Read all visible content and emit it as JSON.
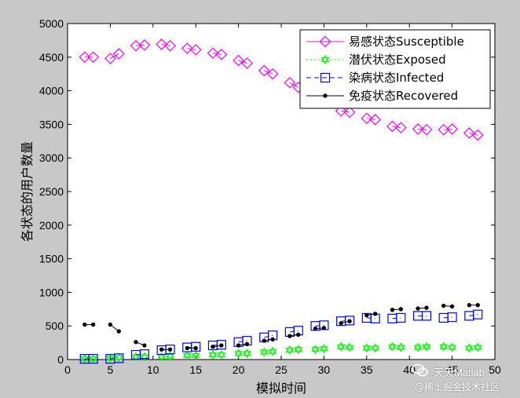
{
  "chart_data": {
    "type": "line",
    "title": "",
    "xlabel": "模拟时间",
    "ylabel": "各状态的用户数量",
    "xlim": [
      0,
      50
    ],
    "ylim": [
      0,
      5000
    ],
    "xticks": [
      0,
      5,
      10,
      15,
      20,
      25,
      30,
      35,
      40,
      45,
      50
    ],
    "yticks": [
      0,
      500,
      1000,
      1500,
      2000,
      2500,
      3000,
      3500,
      4000,
      4500,
      5000
    ],
    "grid": false,
    "legend_position": "top-right",
    "series": [
      {
        "name": "易感状态Susceptible",
        "color": "#ff00ff",
        "marker": "diamond",
        "line_style": "solid",
        "segments": [
          [
            [
              2,
              4500
            ],
            [
              3,
              4500
            ]
          ],
          [
            [
              5,
              4480
            ],
            [
              6,
              4550
            ]
          ],
          [
            [
              8,
              4670
            ],
            [
              9,
              4680
            ]
          ],
          [
            [
              11,
              4690
            ],
            [
              12,
              4670
            ]
          ],
          [
            [
              14,
              4630
            ],
            [
              15,
              4610
            ]
          ],
          [
            [
              17,
              4560
            ],
            [
              18,
              4540
            ]
          ],
          [
            [
              20,
              4450
            ],
            [
              21,
              4410
            ]
          ],
          [
            [
              23,
              4300
            ],
            [
              24,
              4250
            ]
          ],
          [
            [
              26,
              4120
            ],
            [
              27,
              4050
            ]
          ],
          [
            [
              29,
              3970
            ],
            [
              30,
              3910
            ]
          ],
          [
            [
              32,
              3700
            ],
            [
              33,
              3680
            ]
          ],
          [
            [
              35,
              3590
            ],
            [
              36,
              3570
            ]
          ],
          [
            [
              38,
              3470
            ],
            [
              39,
              3450
            ]
          ],
          [
            [
              41,
              3430
            ],
            [
              42,
              3420
            ]
          ],
          [
            [
              44,
              3420
            ],
            [
              45,
              3430
            ]
          ],
          [
            [
              47,
              3370
            ],
            [
              48,
              3340
            ]
          ]
        ]
      },
      {
        "name": "潜伏状态Exposed",
        "color": "#00ff00",
        "marker": "hexagram",
        "line_style": "dotted",
        "segments": [
          [
            [
              2,
              10
            ],
            [
              3,
              10
            ]
          ],
          [
            [
              5,
              20
            ],
            [
              6,
              30
            ]
          ],
          [
            [
              8,
              40
            ],
            [
              9,
              40
            ]
          ],
          [
            [
              11,
              40
            ],
            [
              12,
              50
            ]
          ],
          [
            [
              14,
              60
            ],
            [
              15,
              60
            ]
          ],
          [
            [
              17,
              70
            ],
            [
              18,
              70
            ]
          ],
          [
            [
              20,
              90
            ],
            [
              21,
              90
            ]
          ],
          [
            [
              23,
              110
            ],
            [
              24,
              120
            ]
          ],
          [
            [
              26,
              140
            ],
            [
              27,
              150
            ]
          ],
          [
            [
              29,
              150
            ],
            [
              30,
              160
            ]
          ],
          [
            [
              32,
              190
            ],
            [
              33,
              180
            ]
          ],
          [
            [
              35,
              170
            ],
            [
              36,
              170
            ]
          ],
          [
            [
              38,
              190
            ],
            [
              39,
              180
            ]
          ],
          [
            [
              41,
              180
            ],
            [
              42,
              190
            ]
          ],
          [
            [
              44,
              190
            ],
            [
              45,
              180
            ]
          ],
          [
            [
              47,
              170
            ],
            [
              48,
              180
            ]
          ]
        ]
      },
      {
        "name": "染病状态Infected",
        "color": "#0000ff",
        "marker": "square",
        "line_style": "dashed",
        "segments": [
          [
            [
              2,
              10
            ],
            [
              3,
              10
            ]
          ],
          [
            [
              5,
              10
            ],
            [
              6,
              20
            ]
          ],
          [
            [
              8,
              70
            ],
            [
              9,
              80
            ]
          ],
          [
            [
              11,
              140
            ],
            [
              12,
              150
            ]
          ],
          [
            [
              14,
              180
            ],
            [
              15,
              190
            ]
          ],
          [
            [
              17,
              210
            ],
            [
              18,
              220
            ]
          ],
          [
            [
              20,
              260
            ],
            [
              21,
              280
            ]
          ],
          [
            [
              23,
              330
            ],
            [
              24,
              360
            ]
          ],
          [
            [
              26,
              410
            ],
            [
              27,
              430
            ]
          ],
          [
            [
              29,
              500
            ],
            [
              30,
              510
            ]
          ],
          [
            [
              32,
              570
            ],
            [
              33,
              580
            ]
          ],
          [
            [
              35,
              620
            ],
            [
              36,
              610
            ]
          ],
          [
            [
              38,
              610
            ],
            [
              39,
              620
            ]
          ],
          [
            [
              41,
              650
            ],
            [
              42,
              650
            ]
          ],
          [
            [
              44,
              620
            ],
            [
              45,
              630
            ]
          ],
          [
            [
              47,
              650
            ],
            [
              48,
              670
            ]
          ]
        ]
      },
      {
        "name": "免疫状态Recovered",
        "color": "#000000",
        "marker": "dot",
        "line_style": "solid",
        "segments": [
          [
            [
              2,
              520
            ],
            [
              3,
              520
            ]
          ],
          [
            [
              5,
              520
            ],
            [
              6,
              420
            ]
          ],
          [
            [
              8,
              260
            ],
            [
              9,
              210
            ]
          ],
          [
            [
              11,
              150
            ],
            [
              12,
              150
            ]
          ],
          [
            [
              14,
              170
            ],
            [
              15,
              170
            ]
          ],
          [
            [
              17,
              190
            ],
            [
              18,
              210
            ]
          ],
          [
            [
              20,
              210
            ],
            [
              21,
              230
            ]
          ],
          [
            [
              23,
              280
            ],
            [
              24,
              300
            ]
          ],
          [
            [
              26,
              350
            ],
            [
              27,
              370
            ]
          ],
          [
            [
              29,
              460
            ],
            [
              30,
              470
            ]
          ],
          [
            [
              32,
              540
            ],
            [
              33,
              570
            ]
          ],
          [
            [
              35,
              660
            ],
            [
              36,
              680
            ]
          ],
          [
            [
              38,
              740
            ],
            [
              39,
              750
            ]
          ],
          [
            [
              41,
              760
            ],
            [
              42,
              770
            ]
          ],
          [
            [
              44,
              800
            ],
            [
              45,
              790
            ]
          ],
          [
            [
              47,
              810
            ],
            [
              48,
              810
            ]
          ]
        ]
      }
    ]
  },
  "watermark": {
    "line1": "天天Matlab",
    "line2": "@稀土掘金技术社区"
  }
}
